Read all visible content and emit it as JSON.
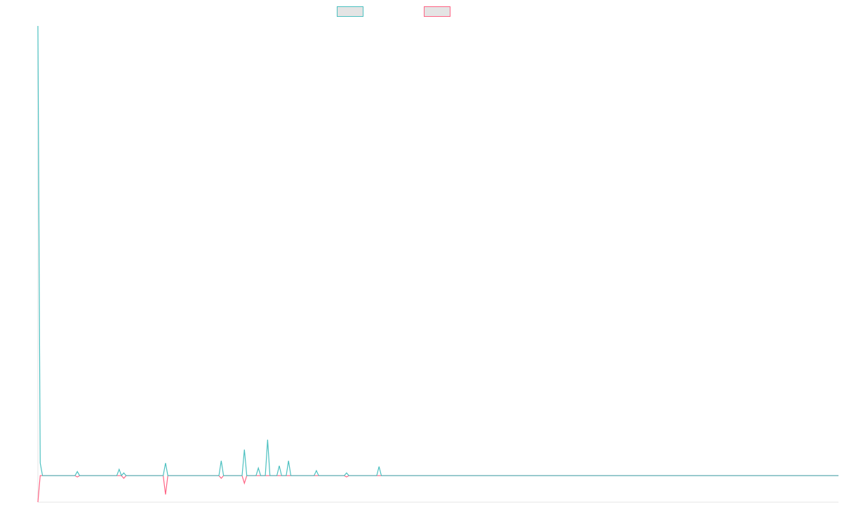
{
  "chart_data": {
    "type": "line",
    "title": "",
    "xlabel": "",
    "ylabel": "",
    "xlim": [
      0,
      345
    ],
    "ylim": [
      -5.9,
      100
    ],
    "grid": false,
    "legend": "top-center",
    "series": [
      {
        "color": "#4bc0c0",
        "points": [
          [
            0,
            100
          ],
          [
            1,
            2.8
          ],
          [
            2,
            0
          ],
          [
            16,
            0
          ],
          [
            17,
            0.9
          ],
          [
            18,
            0
          ],
          [
            34,
            0
          ],
          [
            35,
            1.4
          ],
          [
            36,
            0
          ],
          [
            37,
            0.6
          ],
          [
            38,
            0
          ],
          [
            54,
            0
          ],
          [
            55,
            2.8
          ],
          [
            56,
            0
          ],
          [
            78,
            0
          ],
          [
            79,
            3.3
          ],
          [
            80,
            0
          ],
          [
            88,
            0
          ],
          [
            89,
            5.8
          ],
          [
            90,
            0
          ],
          [
            94,
            0
          ],
          [
            95,
            1.7
          ],
          [
            96,
            0
          ],
          [
            98,
            0
          ],
          [
            99,
            8.0
          ],
          [
            100,
            0
          ],
          [
            103,
            0
          ],
          [
            104,
            2.2
          ],
          [
            105,
            0
          ],
          [
            107,
            0
          ],
          [
            108,
            3.3
          ],
          [
            109,
            0
          ],
          [
            119,
            0
          ],
          [
            120,
            1.1
          ],
          [
            121,
            0
          ],
          [
            132,
            0
          ],
          [
            133,
            0.6
          ],
          [
            134,
            0
          ],
          [
            146,
            0
          ],
          [
            147,
            2.0
          ],
          [
            148,
            0
          ],
          [
            345,
            0
          ]
        ]
      },
      {
        "color": "#ff6384",
        "points": [
          [
            0,
            -5.9
          ],
          [
            1,
            0
          ],
          [
            16,
            0
          ],
          [
            17,
            -0.3
          ],
          [
            18,
            0
          ],
          [
            36,
            0
          ],
          [
            37,
            -0.6
          ],
          [
            38,
            0
          ],
          [
            54,
            0
          ],
          [
            55,
            -4.2
          ],
          [
            56,
            0
          ],
          [
            78,
            0
          ],
          [
            79,
            -0.6
          ],
          [
            80,
            0
          ],
          [
            88,
            0
          ],
          [
            89,
            -1.7
          ],
          [
            90,
            0
          ],
          [
            132,
            0
          ],
          [
            133,
            -0.3
          ],
          [
            134,
            0
          ],
          [
            345,
            0
          ]
        ]
      }
    ]
  }
}
